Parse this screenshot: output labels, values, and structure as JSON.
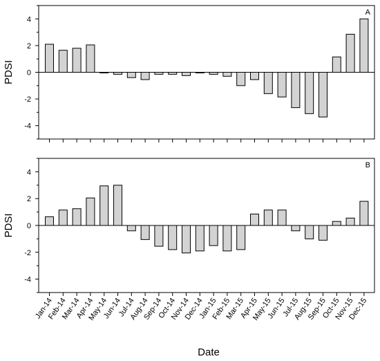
{
  "chart_data": [
    {
      "type": "bar",
      "panel_label": "A",
      "ylabel": "PDSI",
      "ylim": [
        -5,
        5
      ],
      "yticks": [
        -4,
        -2,
        0,
        2,
        4
      ],
      "categories": [
        "Jan-14",
        "Feb-14",
        "Mar-14",
        "Apr-14",
        "May-14",
        "Jun-14",
        "Jul-14",
        "Aug-14",
        "Sep-14",
        "Oct-14",
        "Nov-14",
        "Dec-14",
        "Jan-15",
        "Feb-15",
        "Mar-15",
        "Apr-15",
        "May-15",
        "Jun-15",
        "Jul-15",
        "Aug-15",
        "Sep-15",
        "Oct-15",
        "Nov-15",
        "Dec-15"
      ],
      "values": [
        2.1,
        1.65,
        1.8,
        2.05,
        -0.05,
        -0.15,
        -0.4,
        -0.55,
        -0.15,
        -0.15,
        -0.25,
        -0.05,
        -0.15,
        -0.3,
        -1.0,
        -0.55,
        -1.6,
        -1.85,
        -2.65,
        -3.1,
        -3.35,
        1.15,
        2.85,
        4.0
      ],
      "bar_color": "#d3d3d3",
      "grid": false
    },
    {
      "type": "bar",
      "panel_label": "B",
      "ylabel": "PDSI",
      "xlabel": "Date",
      "ylim": [
        -5,
        5
      ],
      "yticks": [
        -4,
        -2,
        0,
        2,
        4
      ],
      "categories": [
        "Jan-14",
        "Feb-14",
        "Mar-14",
        "Apr-14",
        "May-14",
        "Jun-14",
        "Jul-14",
        "Aug-14",
        "Sep-14",
        "Oct-14",
        "Nov-14",
        "Dec-14",
        "Jan-15",
        "Feb-15",
        "Mar-15",
        "Apr-15",
        "May-15",
        "Jun-15",
        "Jul-15",
        "Aug-15",
        "Sep-15",
        "Oct-15",
        "Nov-15",
        "Dec-15"
      ],
      "values": [
        0.65,
        1.15,
        1.25,
        2.05,
        2.95,
        3.0,
        -0.4,
        -1.05,
        -1.55,
        -1.8,
        -2.05,
        -1.9,
        -1.5,
        -1.9,
        -1.8,
        0.85,
        1.15,
        1.15,
        -0.4,
        -1.0,
        -1.1,
        0.3,
        0.55,
        1.8
      ],
      "bar_color": "#d3d3d3",
      "grid": false
    }
  ]
}
